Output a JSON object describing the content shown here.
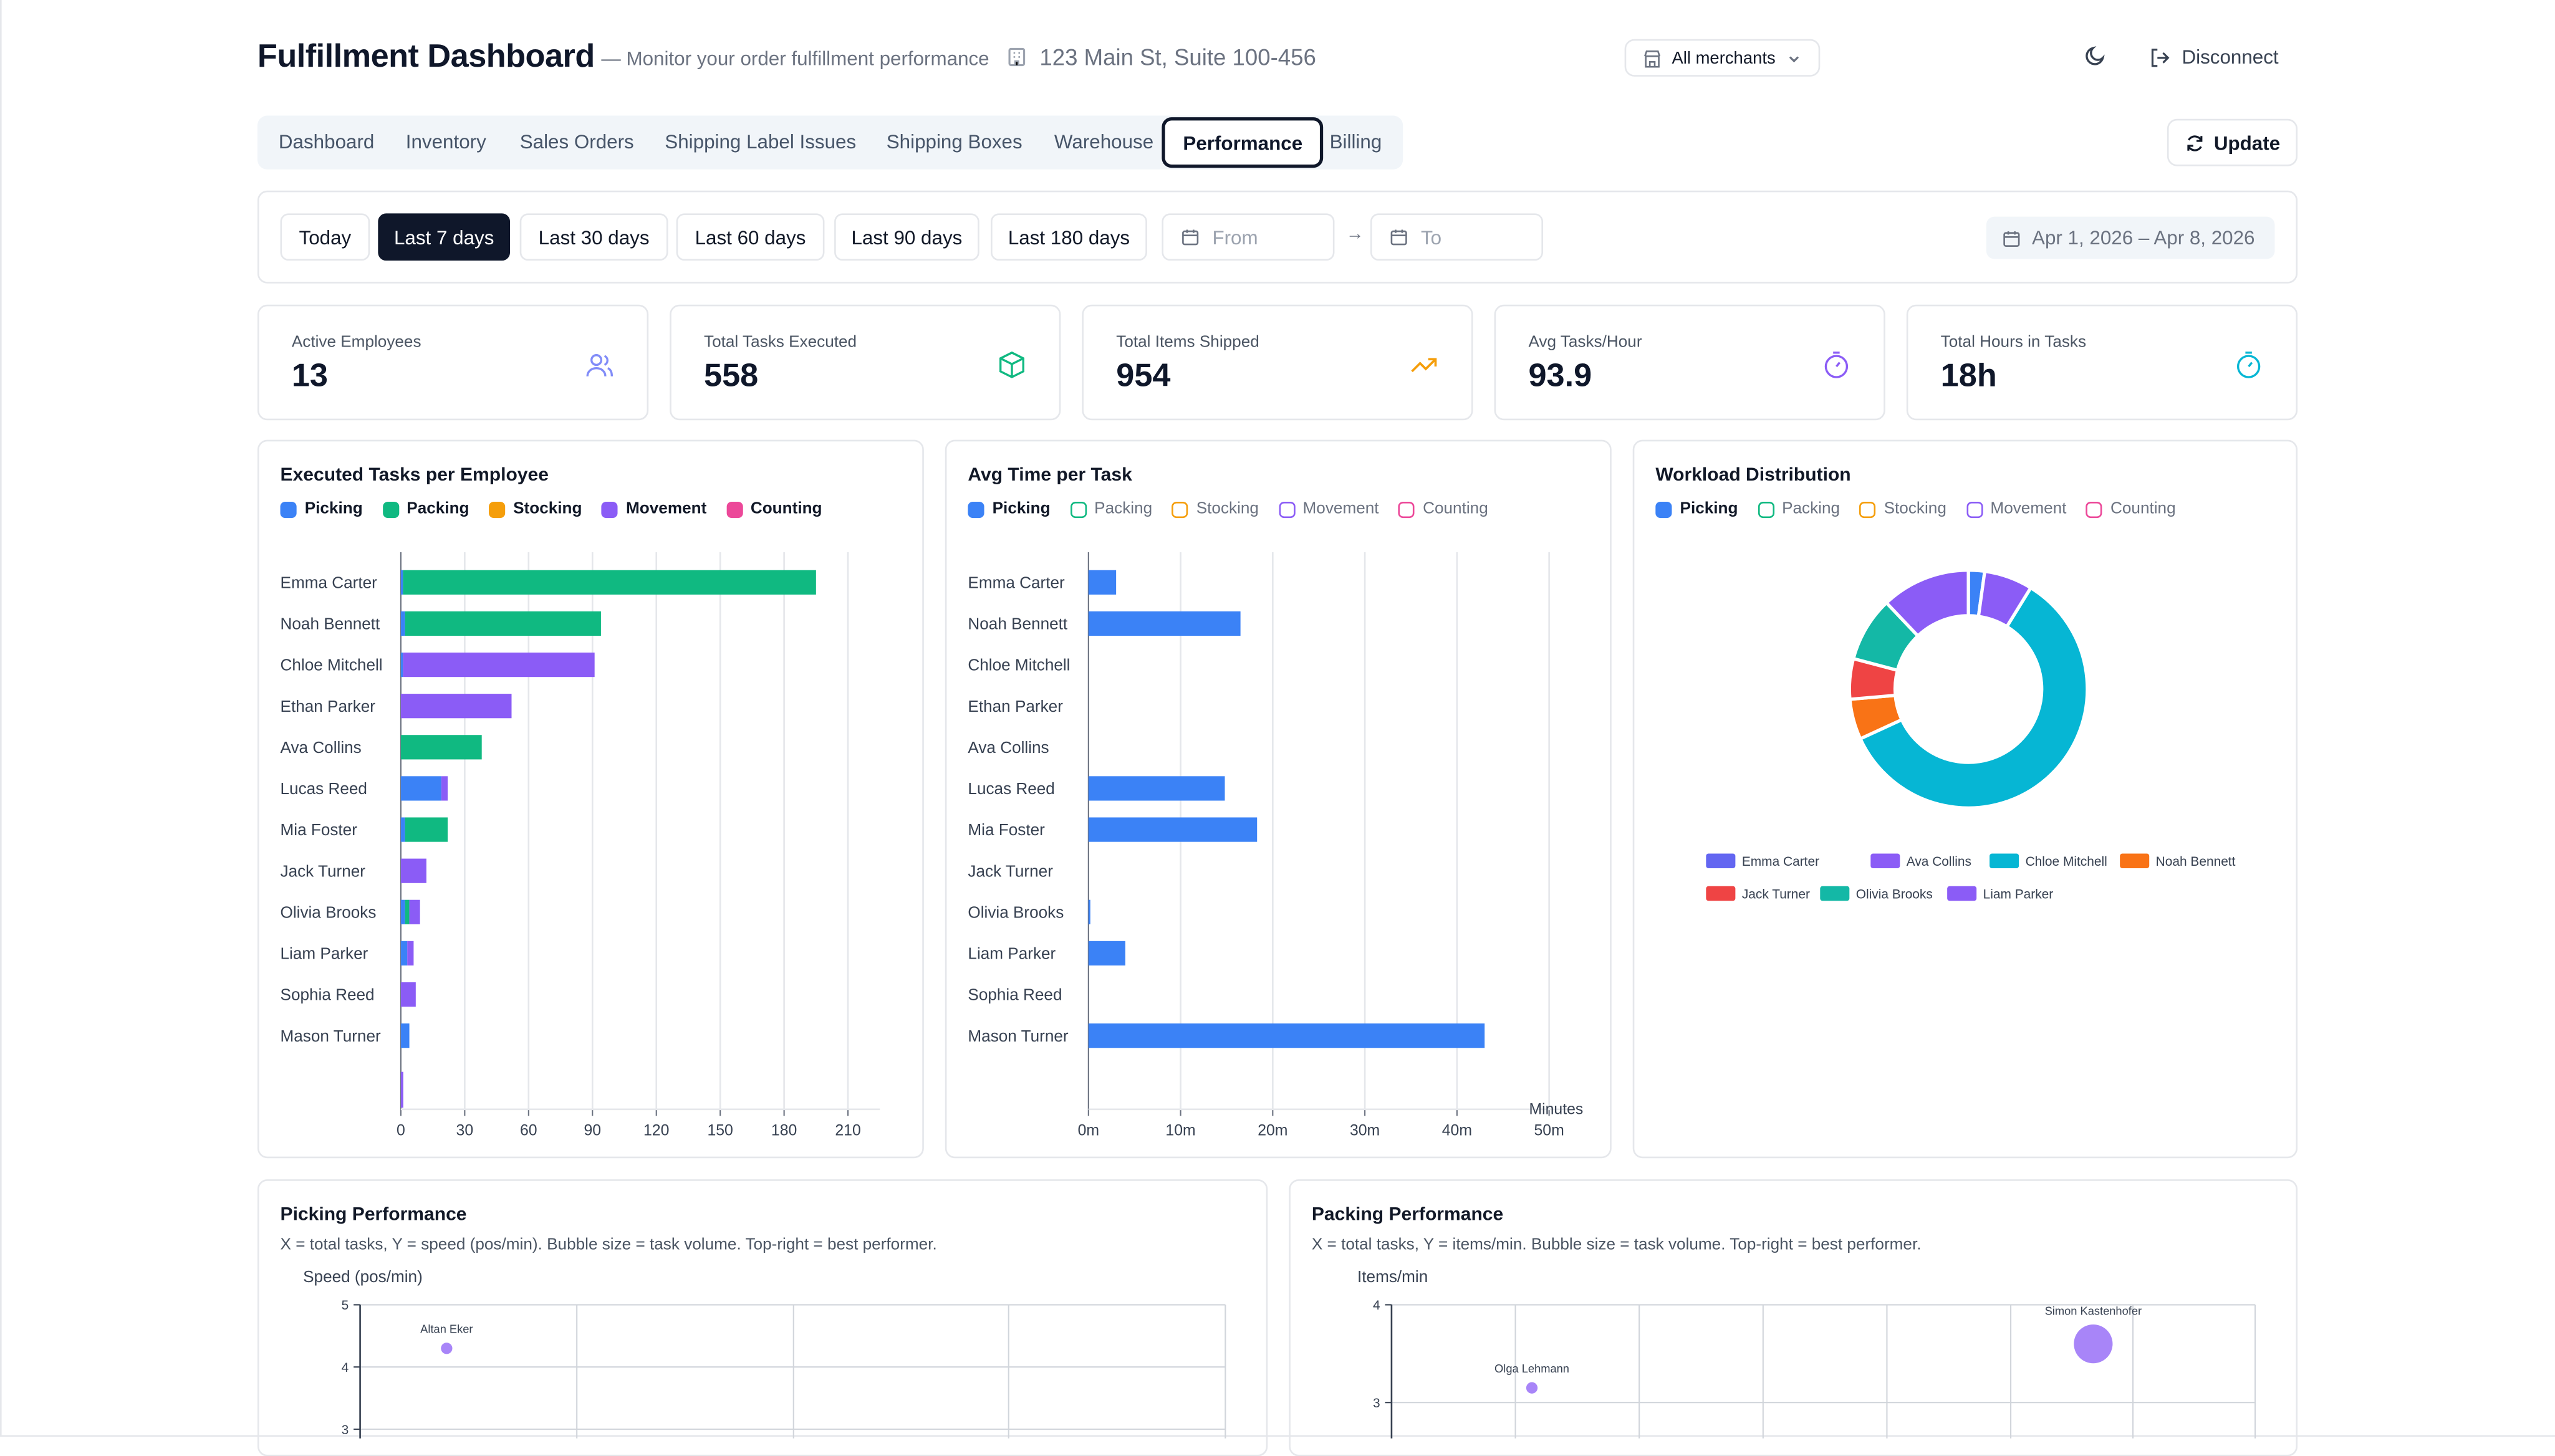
{
  "header": {
    "title": "Fulfillment Dashboard",
    "subtitle": "— Monitor your order fulfillment performance",
    "address": "123 Main St, Suite 100-456",
    "merchant_select": "All merchants",
    "disconnect": "Disconnect"
  },
  "tabs": [
    "Dashboard",
    "Inventory",
    "Sales Orders",
    "Shipping Label Issues",
    "Shipping Boxes",
    "Warehouse",
    "Performance",
    "Billing"
  ],
  "update_label": "Update",
  "filters": {
    "ranges": [
      "Today",
      "Last 7 days",
      "Last 30 days",
      "Last 60 days",
      "Last 90 days",
      "Last 180 days"
    ],
    "active_range": "Last 7 days",
    "from_placeholder": "From",
    "to_placeholder": "To",
    "arrow": "→",
    "date_range": "Apr 1, 2026 – Apr 8, 2026"
  },
  "kpis": [
    {
      "label": "Active Employees",
      "value": "13",
      "icon": "users-icon",
      "color": "#818cf8"
    },
    {
      "label": "Total Tasks Executed",
      "value": "558",
      "icon": "package-icon",
      "color": "#10b981"
    },
    {
      "label": "Total Items Shipped",
      "value": "954",
      "icon": "trending-up-icon",
      "color": "#f59e0b"
    },
    {
      "label": "Avg Tasks/Hour",
      "value": "93.9",
      "icon": "timer-icon",
      "color": "#8b5cf6"
    },
    {
      "label": "Total Hours in Tasks",
      "value": "18h",
      "icon": "timer-icon",
      "color": "#06b6d4"
    }
  ],
  "task_colors": {
    "Picking": "#3b82f6",
    "Packing": "#10b981",
    "Stocking": "#f59e0b",
    "Movement": "#8b5cf6",
    "Counting": "#ec4899"
  },
  "chart_data": [
    {
      "type": "bar",
      "orientation": "horizontal",
      "stacked": true,
      "title": "Executed Tasks per Employee",
      "legend": [
        "Picking",
        "Packing",
        "Stocking",
        "Movement",
        "Counting"
      ],
      "categories": [
        "Emma Carter",
        "Noah Bennett",
        "Chloe Mitchell",
        "Ethan Parker",
        "Ava Collins",
        "Lucas Reed",
        "Mia Foster",
        "Jack Turner",
        "Olivia Brooks",
        "Liam Parker",
        "Sophia Reed",
        "Mason Turner"
      ],
      "series": [
        {
          "name": "Picking",
          "values": [
            1,
            2,
            1,
            0,
            0,
            19,
            2,
            0,
            2,
            3,
            0,
            4
          ]
        },
        {
          "name": "Packing",
          "values": [
            194,
            92,
            0,
            0,
            38,
            0,
            20,
            0,
            2,
            0,
            0,
            0
          ]
        },
        {
          "name": "Stocking",
          "values": [
            0,
            0,
            0,
            0,
            0,
            0,
            0,
            0,
            0,
            0,
            0,
            0
          ]
        },
        {
          "name": "Movement",
          "values": [
            0,
            0,
            90,
            52,
            0,
            3,
            0,
            12,
            5,
            3,
            7,
            0
          ]
        },
        {
          "name": "Counting",
          "values": [
            0,
            0,
            0,
            0,
            0,
            0,
            0,
            0,
            0,
            0,
            0,
            0
          ]
        }
      ],
      "x_ticks": [
        "0",
        "30",
        "60",
        "90",
        "120",
        "150",
        "180",
        "210"
      ],
      "xlim": [
        0,
        225
      ]
    },
    {
      "type": "bar",
      "orientation": "horizontal",
      "title": "Avg Time per Task",
      "legend": [
        "Picking",
        "Packing",
        "Stocking",
        "Movement",
        "Counting"
      ],
      "categories": [
        "Emma Carter",
        "Noah Bennett",
        "Chloe Mitchell",
        "Ethan Parker",
        "Ava Collins",
        "Lucas Reed",
        "Mia Foster",
        "Jack Turner",
        "Olivia Brooks",
        "Liam Parker",
        "Sophia Reed",
        "Mason Turner"
      ],
      "series": [
        {
          "name": "Picking",
          "values": [
            3,
            16.5,
            0,
            0,
            0,
            14.8,
            18.3,
            0,
            0.2,
            4,
            0,
            43
          ]
        }
      ],
      "x_ticks": [
        "0m",
        "10m",
        "20m",
        "30m",
        "40m",
        "50m"
      ],
      "xlabel": "Minutes",
      "xlim": [
        0,
        52
      ]
    },
    {
      "type": "pie",
      "donut": true,
      "title": "Workload Distribution",
      "legend": [
        "Picking",
        "Packing",
        "Stocking",
        "Movement",
        "Counting"
      ],
      "slices": [
        {
          "label": "Emma Carter",
          "value": 2,
          "color": "#3b82f6"
        },
        {
          "label": "Ava Collins",
          "value": 6,
          "color": "#8b5cf6"
        },
        {
          "label": "Chloe Mitchell",
          "value": 54,
          "color": "#06b6d4"
        },
        {
          "label": "Noah Bennett",
          "value": 5,
          "color": "#f97316"
        },
        {
          "label": "Jack Turner",
          "value": 5,
          "color": "#ef4444"
        },
        {
          "label": "Olivia Brooks",
          "value": 8,
          "color": "#14b8a6"
        },
        {
          "label": "Liam Parker",
          "value": 11,
          "color": "#8b5cf6"
        }
      ],
      "legend_items": [
        {
          "label": "Emma Carter",
          "color": "#6366f1"
        },
        {
          "label": "Ava Collins",
          "color": "#8b5cf6"
        },
        {
          "label": "Chloe Mitchell",
          "color": "#06b6d4"
        },
        {
          "label": "Noah Bennett",
          "color": "#f97316"
        },
        {
          "label": "Jack Turner",
          "color": "#ef4444"
        },
        {
          "label": "Olivia Brooks",
          "color": "#14b8a6"
        },
        {
          "label": "Liam Parker",
          "color": "#8b5cf6"
        }
      ]
    },
    {
      "type": "scatter",
      "bubble": true,
      "title": "Picking Performance",
      "description": "X = total tasks, Y = speed (pos/min). Bubble size = task volume. Top-right = best performer.",
      "ylabel": "Speed (pos/min)",
      "y_ticks": [
        "5",
        "4",
        "3"
      ],
      "ylim": [
        2.8,
        5
      ],
      "points": [
        {
          "label": "Altan Eker",
          "x": 10,
          "y": 4.3,
          "size": 1
        }
      ]
    },
    {
      "type": "scatter",
      "bubble": true,
      "title": "Packing Performance",
      "description": "X = total tasks, Y = items/min. Bubble size = task volume. Top-right = best performer.",
      "ylabel": "Items/min",
      "y_ticks": [
        "4",
        "3"
      ],
      "ylim": [
        2.6,
        4
      ],
      "points": [
        {
          "label": "Olga Lehmann",
          "x": 13,
          "y": 3.15,
          "size": 1
        },
        {
          "label": "Simon Kastenhofer",
          "x": 65,
          "y": 3.6,
          "size": 4
        }
      ]
    }
  ]
}
